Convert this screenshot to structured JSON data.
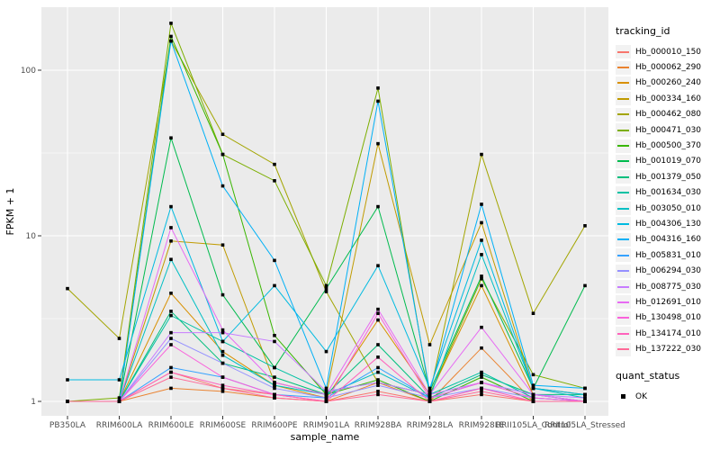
{
  "chart_data": {
    "type": "line",
    "title": "",
    "xlabel": "sample_name",
    "ylabel": "FPKM + 1",
    "y_scale": "log10",
    "y_ticks": [
      1,
      10,
      100
    ],
    "ylim_log": [
      0.95,
      240
    ],
    "grid": "on",
    "panel_bg": "#EBEBEB",
    "grid_color": "#FFFFFF",
    "tick_label_color": "#4D4D4D",
    "point_color": "#000000",
    "point_shape": "square",
    "legend_title": "tracking_id",
    "legend_position": "right",
    "categories": [
      "PB350LA",
      "RRIM600LA",
      "RRIM600LE",
      "RRIM600SE",
      "RRIM600PE",
      "RRIM901LA",
      "RRIM928BA",
      "RRIM928LA",
      "RRIM928LE",
      "RRII105LA_Control",
      "RRII105LA_Stressed"
    ],
    "series": [
      {
        "name": "Hb_000010_150",
        "color": "#F8766D",
        "values": [
          1.0,
          1.0,
          1.5,
          1.2,
          1.1,
          1.0,
          1.15,
          1.0,
          1.1,
          1.0,
          1.0
        ]
      },
      {
        "name": "Hb_000062_290",
        "color": "#EA8331",
        "values": [
          1.0,
          1.0,
          1.2,
          1.15,
          1.05,
          1.0,
          1.3,
          1.0,
          2.1,
          1.0,
          1.0
        ]
      },
      {
        "name": "Hb_000260_240",
        "color": "#D89000",
        "values": [
          1.0,
          1.0,
          4.5,
          2.0,
          1.25,
          1.05,
          3.1,
          1.1,
          5.0,
          1.1,
          1.0
        ]
      },
      {
        "name": "Hb_000334_160",
        "color": "#C09B00",
        "values": [
          1.0,
          1.0,
          9.3,
          8.8,
          1.3,
          1.1,
          36,
          2.2,
          12,
          1.2,
          1.1
        ]
      },
      {
        "name": "Hb_000462_080",
        "color": "#A3A500",
        "values": [
          4.8,
          2.4,
          150,
          41,
          27,
          4.6,
          1.3,
          1.1,
          31,
          3.4,
          11.5
        ]
      },
      {
        "name": "Hb_000471_030",
        "color": "#7CAE00",
        "values": [
          1.0,
          1.05,
          192,
          31,
          21.5,
          5.0,
          78,
          1.1,
          5.5,
          1.45,
          1.2
        ]
      },
      {
        "name": "Hb_000500_370",
        "color": "#39B600",
        "values": [
          1.0,
          1.0,
          160,
          31,
          2.5,
          1.1,
          1.35,
          1.0,
          1.4,
          1.0,
          1.0
        ]
      },
      {
        "name": "Hb_001019_070",
        "color": "#00BB4E",
        "values": [
          1.0,
          1.0,
          39,
          4.4,
          1.6,
          4.8,
          15,
          1.15,
          5.7,
          1.2,
          5.0
        ]
      },
      {
        "name": "Hb_001379_050",
        "color": "#00BF7D",
        "values": [
          1.0,
          1.0,
          3.5,
          1.7,
          1.4,
          1.1,
          2.2,
          1.05,
          1.45,
          1.1,
          1.1
        ]
      },
      {
        "name": "Hb_001634_030",
        "color": "#00C1A3",
        "values": [
          1.0,
          1.0,
          3.3,
          2.3,
          1.6,
          1.15,
          1.3,
          1.1,
          1.5,
          1.05,
          1.0
        ]
      },
      {
        "name": "Hb_003050_010",
        "color": "#00BFC4",
        "values": [
          1.0,
          1.0,
          7.2,
          1.9,
          1.25,
          1.1,
          1.5,
          1.05,
          7.7,
          1.2,
          1.05
        ]
      },
      {
        "name": "Hb_004306_130",
        "color": "#00BAE0",
        "values": [
          1.35,
          1.35,
          15,
          2.3,
          5.0,
          2.0,
          6.6,
          1.2,
          9.4,
          1.2,
          1.1
        ]
      },
      {
        "name": "Hb_004316_160",
        "color": "#00B0F6",
        "values": [
          1.0,
          1.0,
          150,
          20,
          7.1,
          1.2,
          65,
          1.15,
          15.5,
          1.25,
          1.2
        ]
      },
      {
        "name": "Hb_005831_010",
        "color": "#35A2FF",
        "values": [
          1.0,
          1.0,
          1.6,
          1.4,
          1.1,
          1.05,
          1.6,
          1.05,
          1.3,
          1.1,
          1.0
        ]
      },
      {
        "name": "Hb_006294_030",
        "color": "#9590FF",
        "values": [
          1.0,
          1.0,
          2.4,
          1.7,
          1.2,
          1.05,
          1.25,
          1.05,
          1.2,
          1.05,
          1.0
        ]
      },
      {
        "name": "Hb_008775_030",
        "color": "#C77CFF",
        "values": [
          1.0,
          1.0,
          2.6,
          2.6,
          2.3,
          1.15,
          1.3,
          1.1,
          1.3,
          1.1,
          1.05
        ]
      },
      {
        "name": "Hb_012691_010",
        "color": "#E76BF3",
        "values": [
          1.0,
          1.0,
          11.2,
          2.7,
          1.3,
          1.1,
          3.6,
          1.1,
          2.8,
          1.1,
          1.0
        ]
      },
      {
        "name": "Hb_130498_010",
        "color": "#FA62DB",
        "values": [
          1.0,
          1.0,
          2.2,
          1.4,
          1.1,
          1.0,
          3.4,
          1.05,
          1.3,
          1.05,
          1.0
        ]
      },
      {
        "name": "Hb_134174_010",
        "color": "#FF62BC",
        "values": [
          1.0,
          1.0,
          1.5,
          1.25,
          1.1,
          1.0,
          1.85,
          1.0,
          1.2,
          1.0,
          1.0
        ]
      },
      {
        "name": "Hb_137222_030",
        "color": "#FF6A98",
        "values": [
          1.0,
          1.0,
          1.4,
          1.2,
          1.05,
          1.0,
          1.1,
          1.0,
          1.15,
          1.0,
          1.0
        ]
      }
    ],
    "quant_legend": {
      "title": "quant_status",
      "items": [
        {
          "label": "OK",
          "marker": "black-square"
        }
      ]
    }
  }
}
